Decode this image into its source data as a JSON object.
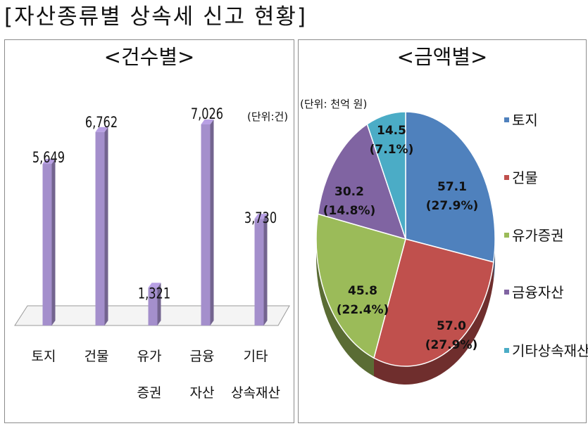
{
  "title": "[자산종류별 상속세 신고 현황]",
  "chart_data": [
    {
      "type": "bar",
      "title": "<건수별>",
      "unit_label": "(단위:건)",
      "categories": [
        [
          "토지"
        ],
        [
          "건물"
        ],
        [
          "유가",
          "증권"
        ],
        [
          "금융",
          "자산"
        ],
        [
          "기타",
          "상속재산"
        ]
      ],
      "values": [
        5649,
        6762,
        1321,
        7026,
        3730
      ],
      "value_labels": [
        "5,649",
        "6,762",
        "1,321",
        "7,026",
        "3,730"
      ],
      "ylim": [
        0,
        7026
      ],
      "color": "#a48fcc",
      "grid": false
    },
    {
      "type": "pie",
      "title": "<금액별>",
      "unit_label": "(단위: 천억 원)",
      "labels": [
        "토지",
        "건물",
        "유가증권",
        "금융자산",
        "기타상속재산"
      ],
      "values": [
        57.1,
        57.0,
        45.8,
        30.2,
        14.5
      ],
      "value_labels": [
        "57.1",
        "57.0",
        "45.8",
        "30.2",
        "14.5"
      ],
      "percent_labels": [
        "(27.9%)",
        "(27.9%)",
        "(22.4%)",
        "(14.8%)",
        "(7.1%)"
      ],
      "colors": [
        "#4f81bd",
        "#c0504d",
        "#9bbb59",
        "#8064a2",
        "#4bacc6"
      ],
      "legend_position": "right"
    }
  ]
}
